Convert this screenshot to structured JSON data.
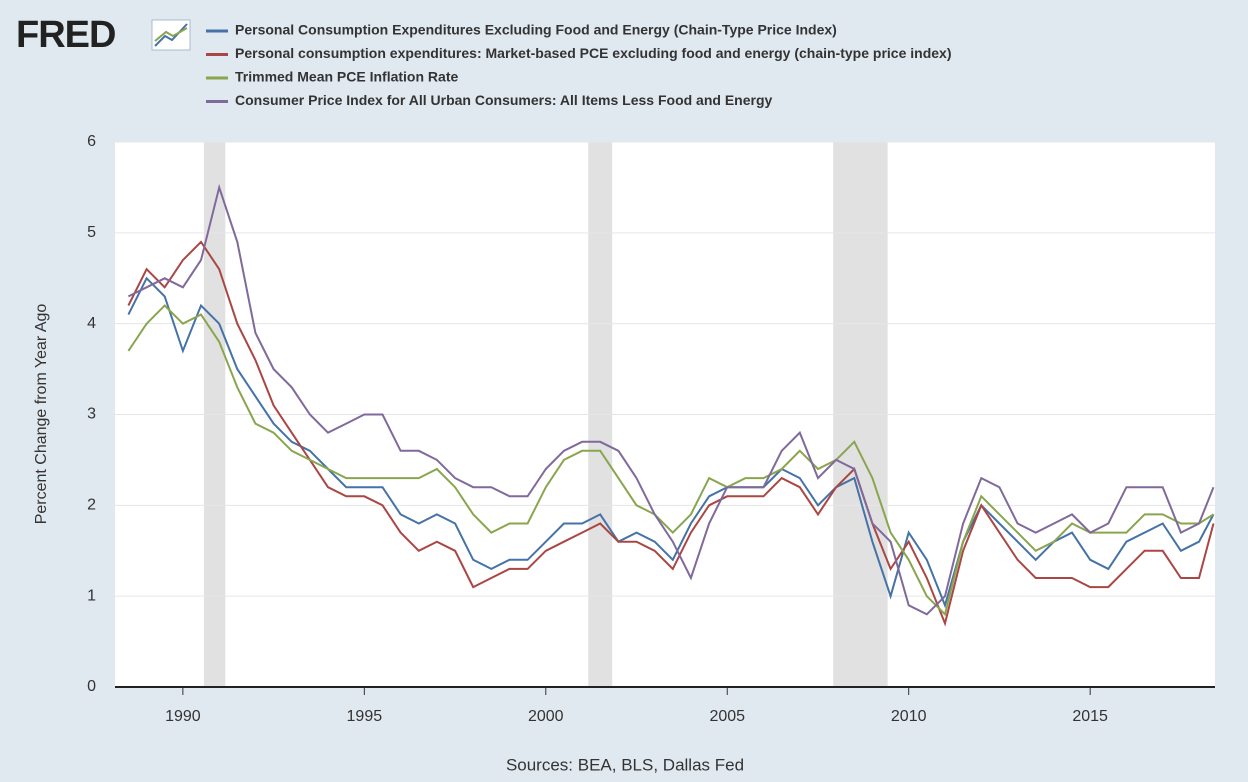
{
  "logo": "FRED",
  "chart_data": {
    "type": "line",
    "y_label": "Percent Change from Year Ago",
    "source": "Sources: BEA, BLS, Dallas Fed",
    "x": [
      1988.5,
      1989,
      1989.5,
      1990,
      1990.5,
      1991,
      1991.5,
      1992,
      1992.5,
      1993,
      1993.5,
      1994,
      1994.5,
      1995,
      1995.5,
      1996,
      1996.5,
      1997,
      1997.5,
      1998,
      1998.5,
      1999,
      1999.5,
      2000,
      2000.5,
      2001,
      2001.5,
      2002,
      2002.5,
      2003,
      2003.5,
      2004,
      2004.5,
      2005,
      2005.5,
      2006,
      2006.5,
      2007,
      2007.5,
      2008,
      2008.5,
      2009,
      2009.5,
      2010,
      2010.5,
      2011,
      2011.5,
      2012,
      2012.5,
      2013,
      2013.5,
      2014,
      2014.5,
      2015,
      2015.5,
      2016,
      2016.5,
      2017,
      2017.5,
      2018,
      2018.4
    ],
    "series": [
      {
        "name": "Personal Consumption Expenditures Excluding Food and Energy (Chain-Type Price Index)",
        "color": "#4572a7",
        "values": [
          4.1,
          4.5,
          4.3,
          3.7,
          4.2,
          4.0,
          3.5,
          3.2,
          2.9,
          2.7,
          2.6,
          2.4,
          2.2,
          2.2,
          2.2,
          1.9,
          1.8,
          1.9,
          1.8,
          1.4,
          1.3,
          1.4,
          1.4,
          1.6,
          1.8,
          1.8,
          1.9,
          1.6,
          1.7,
          1.6,
          1.4,
          1.8,
          2.1,
          2.2,
          2.2,
          2.2,
          2.4,
          2.3,
          2.0,
          2.2,
          2.3,
          1.6,
          1.0,
          1.7,
          1.4,
          0.9,
          1.6,
          2.0,
          1.8,
          1.6,
          1.4,
          1.6,
          1.7,
          1.4,
          1.3,
          1.6,
          1.7,
          1.8,
          1.5,
          1.6,
          1.9
        ]
      },
      {
        "name": "Personal consumption expenditures: Market-based PCE excluding food and energy (chain-type price index)",
        "color": "#aa4643",
        "values": [
          4.2,
          4.6,
          4.4,
          4.7,
          4.9,
          4.6,
          4.0,
          3.6,
          3.1,
          2.8,
          2.5,
          2.2,
          2.1,
          2.1,
          2.0,
          1.7,
          1.5,
          1.6,
          1.5,
          1.1,
          1.2,
          1.3,
          1.3,
          1.5,
          1.6,
          1.7,
          1.8,
          1.6,
          1.6,
          1.5,
          1.3,
          1.7,
          2.0,
          2.1,
          2.1,
          2.1,
          2.3,
          2.2,
          1.9,
          2.2,
          2.4,
          1.8,
          1.3,
          1.6,
          1.2,
          0.7,
          1.5,
          2.0,
          1.7,
          1.4,
          1.2,
          1.2,
          1.2,
          1.1,
          1.1,
          1.3,
          1.5,
          1.5,
          1.2,
          1.2,
          1.8
        ]
      },
      {
        "name": "Trimmed Mean PCE Inflation Rate",
        "color": "#89a54e",
        "values": [
          3.7,
          4.0,
          4.2,
          4.0,
          4.1,
          3.8,
          3.3,
          2.9,
          2.8,
          2.6,
          2.5,
          2.4,
          2.3,
          2.3,
          2.3,
          2.3,
          2.3,
          2.4,
          2.2,
          1.9,
          1.7,
          1.8,
          1.8,
          2.2,
          2.5,
          2.6,
          2.6,
          2.3,
          2.0,
          1.9,
          1.7,
          1.9,
          2.3,
          2.2,
          2.3,
          2.3,
          2.4,
          2.6,
          2.4,
          2.5,
          2.7,
          2.3,
          1.7,
          1.4,
          1.0,
          0.8,
          1.6,
          2.1,
          1.9,
          1.7,
          1.5,
          1.6,
          1.8,
          1.7,
          1.7,
          1.7,
          1.9,
          1.9,
          1.8,
          1.8,
          1.9
        ]
      },
      {
        "name": "Consumer Price Index for All Urban Consumers: All Items Less Food and Energy",
        "color": "#80699b",
        "values": [
          4.3,
          4.4,
          4.5,
          4.4,
          4.7,
          5.5,
          4.9,
          3.9,
          3.5,
          3.3,
          3.0,
          2.8,
          2.9,
          3.0,
          3.0,
          2.6,
          2.6,
          2.5,
          2.3,
          2.2,
          2.2,
          2.1,
          2.1,
          2.4,
          2.6,
          2.7,
          2.7,
          2.6,
          2.3,
          1.9,
          1.6,
          1.2,
          1.8,
          2.2,
          2.2,
          2.2,
          2.6,
          2.8,
          2.3,
          2.5,
          2.4,
          1.8,
          1.6,
          0.9,
          0.8,
          1.0,
          1.8,
          2.3,
          2.2,
          1.8,
          1.7,
          1.8,
          1.9,
          1.7,
          1.8,
          2.2,
          2.2,
          2.2,
          1.7,
          1.8,
          2.2
        ]
      }
    ],
    "recessions": [
      [
        1990.58,
        1991.17
      ],
      [
        2001.17,
        2001.83
      ],
      [
        2007.92,
        2009.42
      ]
    ],
    "recession_color": "#e1e1e1",
    "xlim": [
      1988.13,
      2018.44
    ],
    "xticks": [
      1990,
      1995,
      2000,
      2005,
      2010,
      2015
    ],
    "ylim": [
      0,
      6
    ],
    "yticks": [
      0,
      1,
      2,
      3,
      4,
      5,
      6
    ],
    "grid": true
  }
}
